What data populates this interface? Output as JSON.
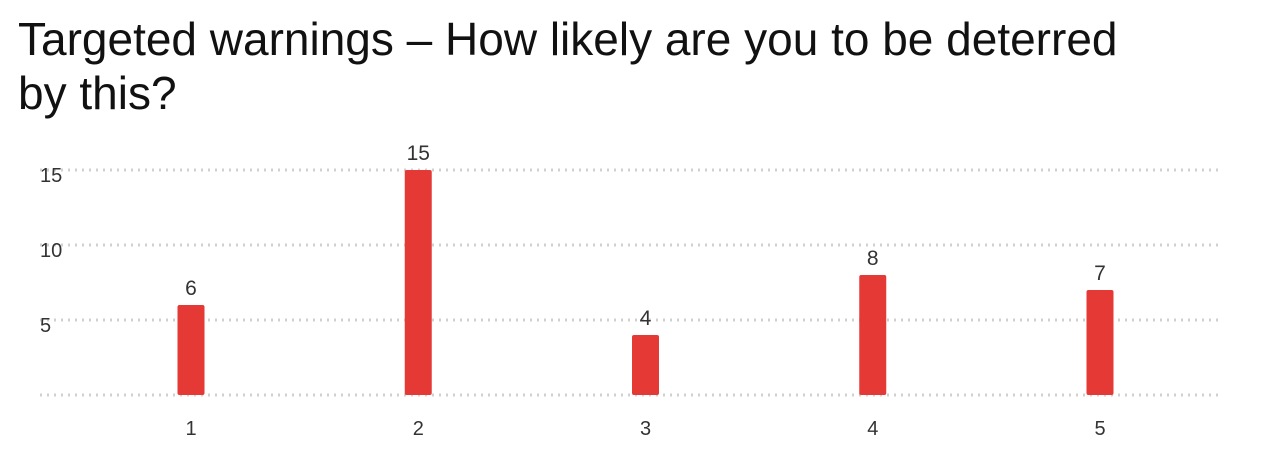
{
  "title": "Targeted warnings – How likely are you to be deterred by this?",
  "chart_data": {
    "type": "bar",
    "categories": [
      "1",
      "2",
      "3",
      "4",
      "5"
    ],
    "values": [
      6,
      15,
      4,
      8,
      7
    ],
    "data_labels": [
      "6",
      "15",
      "4",
      "8",
      "7"
    ],
    "yticks": [
      5,
      10,
      15
    ],
    "ytick_labels": [
      "5",
      "10",
      "15"
    ],
    "ylim": [
      0,
      16.5
    ],
    "grid": true,
    "legend": "none",
    "bar_color": "#e53935",
    "grid_color": "#d0d0d0"
  }
}
